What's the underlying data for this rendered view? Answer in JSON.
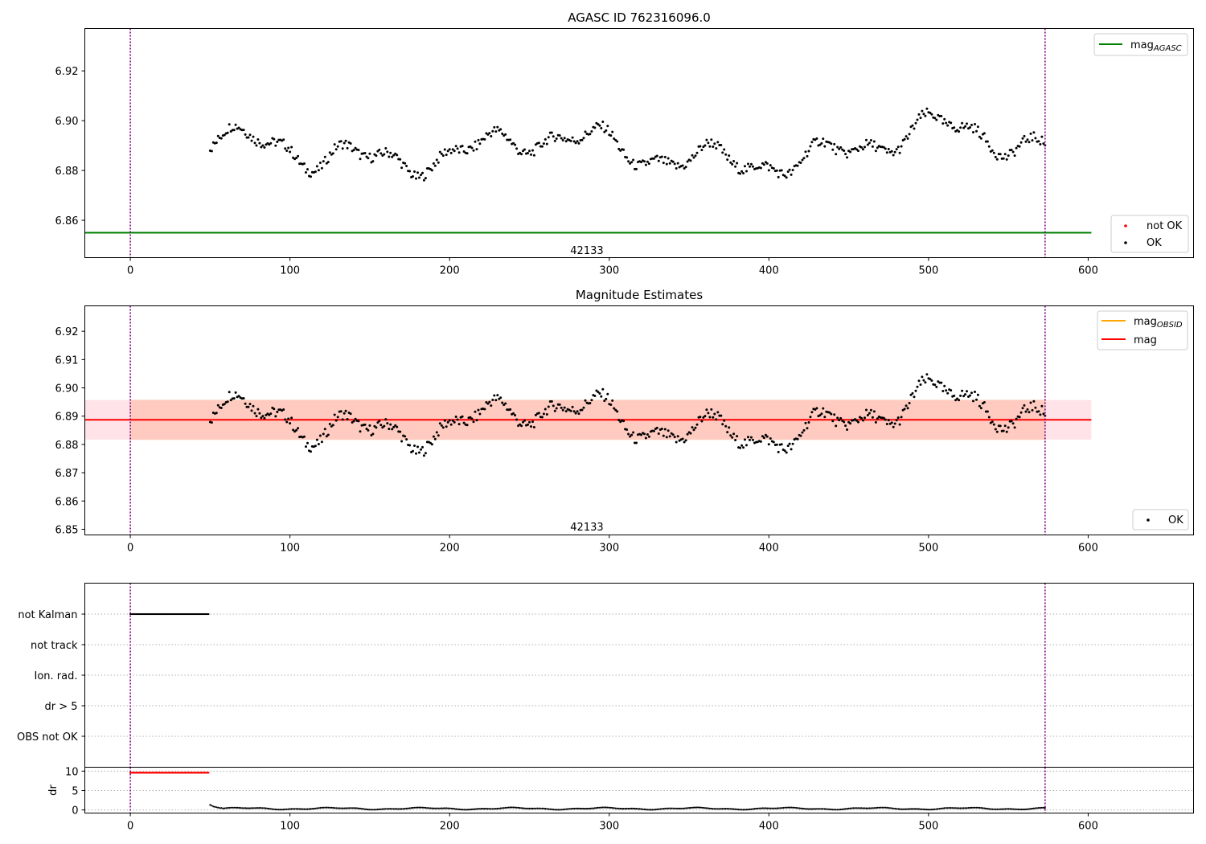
{
  "colors": {
    "ok": "#000000",
    "not_ok": "#ff0000",
    "agasc_line": "#008000",
    "obsid_line": "#ffa500",
    "mean_line": "#ff0000",
    "band_inner": "#ffa07a",
    "band_outer": "#ffc0cb",
    "vline": "#800080",
    "grid": "#b0b0b0"
  },
  "chart_data": [
    {
      "name": "agasc-panel",
      "type": "scatter",
      "title": "AGASC ID 762316096.0",
      "xlabel": "",
      "ylabel": "",
      "xlim": [
        -28.5,
        666
      ],
      "ylim": [
        6.845,
        6.937
      ],
      "xticks": [
        0,
        100,
        200,
        300,
        400,
        500,
        600
      ],
      "yticks": [
        6.86,
        6.88,
        6.9,
        6.92
      ],
      "ytick_labels": [
        "6.86",
        "6.88",
        "6.90",
        "6.92"
      ],
      "vlines": [
        0,
        573
      ],
      "hline": {
        "y": 6.855,
        "x": [
          -28.5,
          602
        ]
      },
      "annotation": {
        "text": "42133",
        "x": 286,
        "y": 6.8465
      },
      "legend_top": {
        "position": "top-right",
        "entries": [
          {
            "label": "mag",
            "sub": "AGASC",
            "style": "line",
            "color": "#008000"
          }
        ]
      },
      "legend_bottom": {
        "position": "lower-right",
        "entries": [
          {
            "label": "not OK",
            "style": "dot",
            "color": "#ff0000"
          },
          {
            "label": "OK",
            "style": "dot",
            "color": "#000000"
          }
        ]
      },
      "series": [
        {
          "name": "OK",
          "x_start": 50,
          "x_end": 573,
          "x_step": 1,
          "trend": "mag_curve"
        }
      ]
    },
    {
      "name": "estimates-panel",
      "type": "scatter",
      "title": "Magnitude Estimates",
      "xlabel": "",
      "ylabel": "",
      "xlim": [
        -28.5,
        666
      ],
      "ylim": [
        6.848,
        6.929
      ],
      "xticks": [
        0,
        100,
        200,
        300,
        400,
        500,
        600
      ],
      "yticks": [
        6.85,
        6.86,
        6.87,
        6.88,
        6.89,
        6.9,
        6.91,
        6.92
      ],
      "ytick_labels": [
        "6.85",
        "6.86",
        "6.87",
        "6.88",
        "6.89",
        "6.90",
        "6.91",
        "6.92"
      ],
      "vlines": [
        0,
        573
      ],
      "mean": 6.8887,
      "band_outer": [
        6.8817,
        6.8957
      ],
      "band_inner": [
        6.8817,
        6.8957
      ],
      "band_x": [
        -28.5,
        602
      ],
      "annotation": {
        "text": "42133",
        "x": 286,
        "y": 6.8495
      },
      "legend_top": {
        "position": "top-right",
        "entries": [
          {
            "label": "mag",
            "sub": "OBSID",
            "style": "line",
            "color": "#ffa500"
          },
          {
            "label": "mag",
            "style": "line",
            "color": "#ff0000"
          }
        ]
      },
      "legend_bottom": {
        "position": "lower-right",
        "entries": [
          {
            "label": "OK",
            "style": "dot",
            "color": "#000000"
          }
        ]
      },
      "series": [
        {
          "name": "OK",
          "x_start": 50,
          "x_end": 573,
          "x_step": 1,
          "trend": "mag_curve"
        }
      ]
    },
    {
      "name": "flags-panel",
      "type": "scatter",
      "title": "",
      "xlabel": "",
      "ylabel": "",
      "xlim": [
        -28.5,
        666
      ],
      "categories": [
        "not Kalman",
        "not track",
        "Ion. rad.",
        "dr > 5",
        "OBS not OK"
      ],
      "vlines": [
        0,
        573
      ],
      "series": [
        {
          "name": "not Kalman",
          "x_start": 0,
          "x_end": 49,
          "x_step": 0.5
        }
      ]
    },
    {
      "name": "dr-panel",
      "type": "scatter",
      "title": "",
      "xlabel": "",
      "ylabel": "dr",
      "xlim": [
        -28.5,
        666
      ],
      "ylim": [
        -0.8,
        11
      ],
      "xticks": [
        0,
        100,
        200,
        300,
        400,
        500,
        600
      ],
      "xtick_labels": [
        "0",
        "100",
        "200",
        "300",
        "400",
        "500",
        "600"
      ],
      "yticks": [
        0,
        5,
        10
      ],
      "ytick_labels": [
        "0",
        "5",
        "10"
      ],
      "vlines": [
        0,
        573
      ],
      "series": [
        {
          "name": "capped",
          "color": "#ff0000",
          "x_start": 0,
          "x_end": 49,
          "x_step": 0.5,
          "value": 9.6
        },
        {
          "name": "dr",
          "color": "#000000",
          "x_start": 50,
          "x_end": 573,
          "x_step": 1,
          "values_start": [
            1.3,
            1.1,
            0.9,
            0.8,
            0.7,
            0.6,
            0.5,
            0.5,
            0.4
          ],
          "typical": 0.35
        }
      ]
    }
  ]
}
